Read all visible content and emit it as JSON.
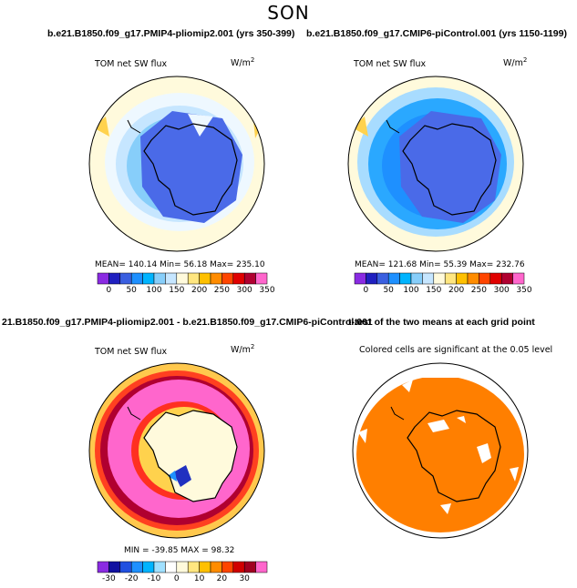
{
  "season": "SON",
  "panels": {
    "top_left": {
      "header": "b.e21.B1850.f09_g17.PMIP4-pliomip2.001 (yrs 350-399)",
      "field": "TOM net SW flux",
      "units": "W/m",
      "units_exp": "2",
      "stats": "MEAN= 140.14   Min=   56.18   Max= 235.10"
    },
    "top_right": {
      "header": "b.e21.B1850.f09_g17.CMIP6-piControl.001 (yrs 1150-1199)",
      "field": "TOM net SW flux",
      "units": "W/m",
      "units_exp": "2",
      "stats": "MEAN= 121.68   Min=   55.39   Max= 232.76"
    },
    "bottom_left": {
      "header": "21.B1850.f09_g17.PMIP4-pliomip2.001 - b.e21.B1850.f09_g17.CMIP6-piControl.001",
      "field": "TOM net SW flux",
      "units": "W/m",
      "units_exp": "2",
      "stats": "MIN = -39.85  MAX =  98.32"
    },
    "bottom_right": {
      "header": "t-test of the two means at each grid point",
      "note": "Colored cells are significant at the 0.05 level"
    }
  },
  "colorbar_abs": {
    "labels": [
      "0",
      "50",
      "100",
      "150",
      "200",
      "250",
      "300",
      "350"
    ],
    "colors": [
      "#8a2be2",
      "#2020c0",
      "#3a5fe0",
      "#1e90ff",
      "#00b4ff",
      "#87cefa",
      "#c6e6ff",
      "#fffadc",
      "#ffe680",
      "#ffc000",
      "#ff8c00",
      "#ff4500",
      "#e00000",
      "#b00030",
      "#ff66cc"
    ]
  },
  "colorbar_diff": {
    "labels": [
      "-30",
      "-20",
      "-10",
      "0",
      "10",
      "20",
      "30"
    ],
    "colors": [
      "#8a2be2",
      "#1010a0",
      "#2050e0",
      "#1e90ff",
      "#00b4ff",
      "#a0e0ff",
      "#ffffff",
      "#fffadc",
      "#ffe680",
      "#ffc000",
      "#ff8c00",
      "#ff4500",
      "#d00000",
      "#a00020",
      "#ff66cc"
    ]
  }
}
